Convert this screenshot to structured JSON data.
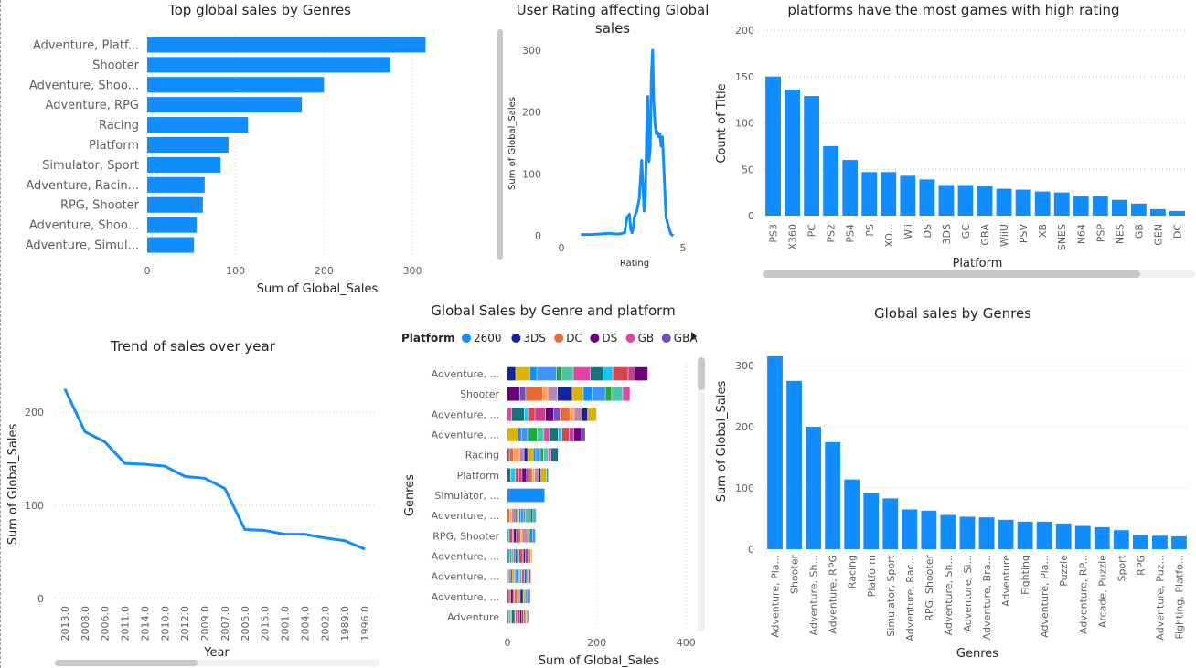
{
  "chart_data": [
    {
      "id": "c1",
      "type": "bar",
      "orientation": "horizontal",
      "title": "Top global sales by Genres",
      "xlabel": "Sum of Global_Sales",
      "ylabel": "",
      "categories": [
        "Adventure, Platf...",
        "Shooter",
        "Adventure, Shoo...",
        "Adventure, RPG",
        "Racing",
        "Platform",
        "Simulator, Sport",
        "Adventure, Racin...",
        "RPG, Shooter",
        "Adventure, Shoo...",
        "Adventure, Simul..."
      ],
      "values": [
        315,
        275,
        200,
        175,
        114,
        92,
        83,
        65,
        63,
        56,
        53
      ],
      "xlim": [
        0,
        330
      ],
      "xticks": [
        "0",
        "100",
        "200",
        "300"
      ],
      "grid": true,
      "colors": {
        "bar": "#118DFF"
      }
    },
    {
      "id": "c2",
      "type": "line",
      "title": "User Rating affecting Global sales",
      "xlabel": "Rating",
      "ylabel": "Sum of Global_Sales",
      "x": [
        0.8,
        1.2,
        1.6,
        2.0,
        2.2,
        2.4,
        2.6,
        2.7,
        2.8,
        2.85,
        2.9,
        2.95,
        3.0,
        3.1,
        3.2,
        3.3,
        3.35,
        3.4,
        3.45,
        3.5,
        3.55,
        3.6,
        3.65,
        3.7,
        3.75,
        3.8,
        3.85,
        3.9,
        3.95,
        4.0,
        4.05,
        4.1,
        4.15,
        4.2,
        4.3,
        4.4,
        4.5,
        4.6
      ],
      "y": [
        2,
        2,
        3,
        4,
        3,
        3,
        5,
        30,
        35,
        10,
        5,
        12,
        30,
        40,
        60,
        122,
        80,
        40,
        60,
        160,
        225,
        120,
        140,
        260,
        300,
        215,
        180,
        165,
        168,
        160,
        165,
        145,
        160,
        120,
        30,
        15,
        3,
        0
      ],
      "xlim": [
        0,
        5
      ],
      "ylim": [
        0,
        300
      ],
      "xticks": [
        "0",
        "5"
      ],
      "yticks": [
        "0",
        "100",
        "200",
        "300"
      ],
      "grid": false,
      "colors": {
        "line": "#118DFF"
      }
    },
    {
      "id": "c3",
      "type": "bar",
      "title": "platforms have the most games with high rating",
      "xlabel": "Platform",
      "ylabel": "Count of Title",
      "categories": [
        "PS3",
        "X360",
        "PC",
        "PS2",
        "PS4",
        "PS",
        "XO...",
        "Wii",
        "DS",
        "3DS",
        "GC",
        "GBA",
        "WiiU",
        "PSV",
        "XB",
        "SNES",
        "N64",
        "PSP",
        "NES",
        "GB",
        "GEN",
        "DC"
      ],
      "values": [
        150,
        136,
        129,
        75,
        60,
        47,
        47,
        43,
        39,
        33,
        33,
        32,
        29,
        28,
        26,
        25,
        21,
        21,
        17,
        13,
        7,
        5
      ],
      "ylim": [
        0,
        200
      ],
      "yticks": [
        "0",
        "50",
        "100",
        "150",
        "200"
      ],
      "grid": true,
      "colors": {
        "bar": "#118DFF"
      }
    },
    {
      "id": "c4",
      "type": "line",
      "title": "Trend of sales over year",
      "xlabel": "Year",
      "ylabel": "Sum of Global_Sales",
      "categories": [
        "2013.0",
        "2008.0",
        "2006.0",
        "2011.0",
        "2014.0",
        "2010.0",
        "2012.0",
        "2009.0",
        "2007.0",
        "2005.0",
        "2015.0",
        "2001.0",
        "2004.0",
        "2002.0",
        "1989.0",
        "1996.0"
      ],
      "values": [
        225,
        179,
        168,
        145,
        144,
        142,
        131,
        129,
        118,
        74,
        73,
        69,
        69,
        65,
        62,
        53
      ],
      "ylim": [
        0,
        250
      ],
      "yticks": [
        "0",
        "100",
        "200"
      ],
      "grid": true,
      "colors": {
        "line": "#118DFF"
      }
    },
    {
      "id": "c5",
      "type": "bar",
      "orientation": "horizontal",
      "stacked": true,
      "title": "Global Sales by Genre and platform",
      "xlabel": "Sum of Global_Sales",
      "ylabel": "Genres",
      "legend_title": "Platform",
      "legend_items": [
        {
          "name": "2600",
          "color": "#118DFF"
        },
        {
          "name": "3DS",
          "color": "#12239E"
        },
        {
          "name": "DC",
          "color": "#E66C37"
        },
        {
          "name": "DS",
          "color": "#6B007B"
        },
        {
          "name": "GB",
          "color": "#E044A7"
        },
        {
          "name": "GBA",
          "color": "#744EC2"
        }
      ],
      "categories": [
        "Adventure, ...",
        "Shooter",
        "Adventure, ...",
        "Adventure, ...",
        "Racing",
        "Platform",
        "Simulator, ...",
        "Adventure, ...",
        "RPG, Shooter",
        "Adventure, ...",
        "Adventure, ...",
        "Adventure, ...",
        "Adventure"
      ],
      "totals": [
        315,
        275,
        200,
        175,
        114,
        92,
        83,
        65,
        63,
        56,
        53,
        52,
        48
      ],
      "palette": [
        "#12239E",
        "#6B007B",
        "#E044A7",
        "#D9B300",
        "#744EC2",
        "#197278",
        "#118DFF",
        "#E66C37",
        "#15C6F4",
        "#4092FF",
        "#FFA058",
        "#D64550",
        "#1AAB40",
        "#B887AD",
        "#C83D95",
        "#4BC5A6"
      ],
      "xlim": [
        0,
        420
      ],
      "xticks": [
        "0",
        "200",
        "400"
      ],
      "grid": true
    },
    {
      "id": "c6",
      "type": "bar",
      "title": "Global sales by Genres",
      "xlabel": "Genres",
      "ylabel": "Sum of Global_Sales",
      "categories": [
        "Adventure, Pla...",
        "Shooter",
        "Adventure, Sh...",
        "Adventure, RPG",
        "Racing",
        "Platform",
        "Simulator, Sport",
        "Adventure, Rac...",
        "RPG, Shooter",
        "Adventure, Sh...",
        "Adventure, Si...",
        "Adventure, Bra...",
        "Adventure",
        "Fighting",
        "Adventure, Pla...",
        "Puzzle",
        "Adventure, RP...",
        "Arcade, Puzzle",
        "Sport",
        "RPG",
        "Adventure, Puz...",
        "Fighting, Platfo..."
      ],
      "values": [
        315,
        275,
        200,
        175,
        114,
        92,
        83,
        65,
        63,
        56,
        53,
        52,
        48,
        45,
        45,
        42,
        38,
        36,
        31,
        23,
        22,
        21
      ],
      "ylim": [
        0,
        330
      ],
      "yticks": [
        "0",
        "100",
        "200",
        "300"
      ],
      "grid": true,
      "colors": {
        "bar": "#118DFF"
      }
    }
  ],
  "ui": {
    "scrollbar_color": "#c8c8c8",
    "scrollbar_track": "#f0f0f0",
    "legend_next_icon": "triangle-right-icon"
  }
}
